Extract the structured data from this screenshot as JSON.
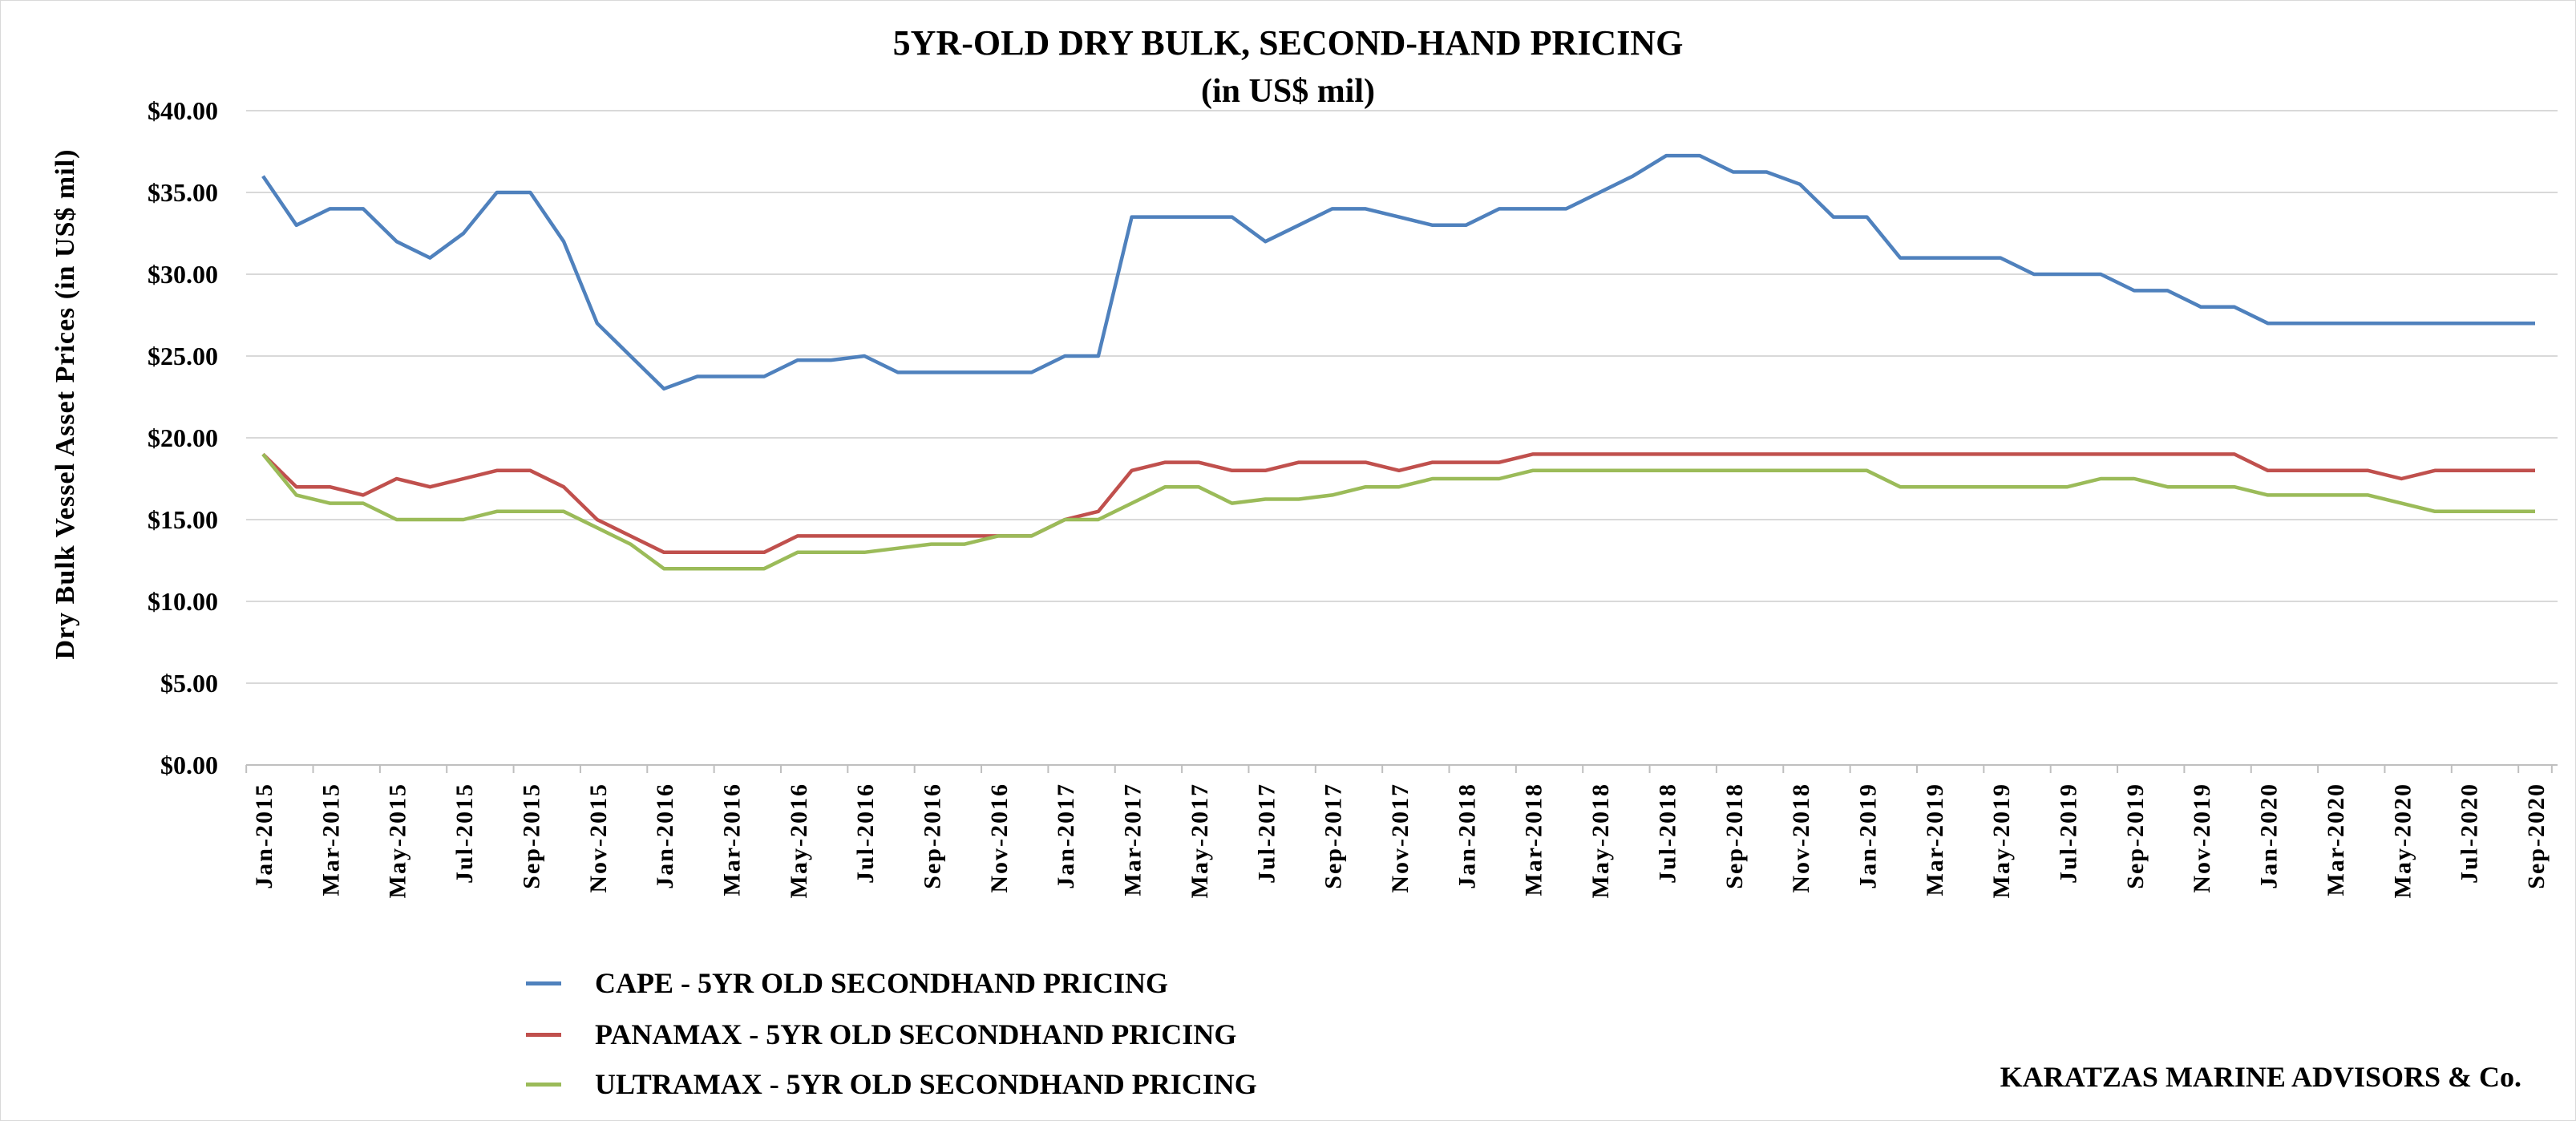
{
  "chart_data": {
    "type": "line",
    "title": "5YR-OLD DRY BULK, SECOND-HAND PRICING",
    "subtitle": "(in US$ mil)",
    "xlabel": "",
    "ylabel": "Dry Bulk Vessel Asset Prices (in US$ mil)",
    "ylim": [
      0,
      40
    ],
    "yticks": [
      "$0.00",
      "$5.00",
      "$10.00",
      "$15.00",
      "$20.00",
      "$25.00",
      "$30.00",
      "$35.00",
      "$40.00"
    ],
    "grid": true,
    "legend_position": "bottom-left",
    "x": [
      "Jan-2015",
      "Feb-2015",
      "Mar-2015",
      "Apr-2015",
      "May-2015",
      "Jun-2015",
      "Jul-2015",
      "Aug-2015",
      "Sep-2015",
      "Oct-2015",
      "Nov-2015",
      "Dec-2015",
      "Jan-2016",
      "Feb-2016",
      "Mar-2016",
      "Apr-2016",
      "May-2016",
      "Jun-2016",
      "Jul-2016",
      "Aug-2016",
      "Sep-2016",
      "Oct-2016",
      "Nov-2016",
      "Dec-2016",
      "Jan-2017",
      "Feb-2017",
      "Mar-2017",
      "Apr-2017",
      "May-2017",
      "Jun-2017",
      "Jul-2017",
      "Aug-2017",
      "Sep-2017",
      "Oct-2017",
      "Nov-2017",
      "Dec-2017",
      "Jan-2018",
      "Feb-2018",
      "Mar-2018",
      "Apr-2018",
      "May-2018",
      "Jun-2018",
      "Jul-2018",
      "Aug-2018",
      "Sep-2018",
      "Oct-2018",
      "Nov-2018",
      "Dec-2018",
      "Jan-2019",
      "Feb-2019",
      "Mar-2019",
      "Apr-2019",
      "May-2019",
      "Jun-2019",
      "Jul-2019",
      "Aug-2019",
      "Sep-2019",
      "Oct-2019",
      "Nov-2019",
      "Dec-2019",
      "Jan-2020",
      "Feb-2020",
      "Mar-2020",
      "Apr-2020",
      "May-2020",
      "Jun-2020",
      "Jul-2020",
      "Aug-2020",
      "Sep-2020"
    ],
    "xtick_labels": [
      "Jan-2015",
      "Mar-2015",
      "May-2015",
      "Jul-2015",
      "Sep-2015",
      "Nov-2015",
      "Jan-2016",
      "Mar-2016",
      "May-2016",
      "Jul-2016",
      "Sep-2016",
      "Nov-2016",
      "Jan-2017",
      "Mar-2017",
      "May-2017",
      "Jul-2017",
      "Sep-2017",
      "Nov-2017",
      "Jan-2018",
      "Mar-2018",
      "May-2018",
      "Jul-2018",
      "Sep-2018",
      "Nov-2018",
      "Jan-2019",
      "Mar-2019",
      "May-2019",
      "Jul-2019",
      "Sep-2019",
      "Nov-2019",
      "Jan-2020",
      "Mar-2020",
      "May-2020",
      "Jul-2020",
      "Sep-2020"
    ],
    "series": [
      {
        "name": "CAPE - 5YR OLD SECONDHAND PRICING",
        "color": "#4f81bd",
        "values": [
          36,
          33,
          34,
          34,
          32,
          31,
          32.5,
          35,
          35,
          32,
          27,
          25,
          23,
          23.75,
          23.75,
          23.75,
          24.75,
          24.75,
          25,
          24,
          24,
          24,
          24,
          24,
          25,
          25,
          33.5,
          33.5,
          33.5,
          33.5,
          32,
          33,
          34,
          34,
          33.5,
          33,
          33,
          34,
          34,
          34,
          35,
          36,
          37.25,
          37.25,
          36.25,
          36.25,
          35.5,
          33.5,
          33.5,
          31,
          31,
          31,
          31,
          30,
          30,
          30,
          29,
          29,
          28,
          28,
          27,
          27,
          27,
          27,
          27,
          27,
          27,
          27,
          27
        ]
      },
      {
        "name": "PANAMAX - 5YR OLD SECONDHAND PRICING",
        "color": "#c0504d",
        "values": [
          19,
          17,
          17,
          16.5,
          17.5,
          17,
          17.5,
          18,
          18,
          17,
          15,
          14,
          13,
          13,
          13,
          13,
          14,
          14,
          14,
          14,
          14,
          14,
          14,
          14,
          15,
          15.5,
          18,
          18.5,
          18.5,
          18,
          18,
          18.5,
          18.5,
          18.5,
          18,
          18.5,
          18.5,
          18.5,
          19,
          19,
          19,
          19,
          19,
          19,
          19,
          19,
          19,
          19,
          19,
          19,
          19,
          19,
          19,
          19,
          19,
          19,
          19,
          19,
          19,
          19,
          18,
          18,
          18,
          18,
          17.5,
          18,
          18,
          18,
          18
        ]
      },
      {
        "name": "ULTRAMAX - 5YR OLD SECONDHAND PRICING",
        "color": "#9bbb59",
        "values": [
          19,
          16.5,
          16,
          16,
          15,
          15,
          15,
          15.5,
          15.5,
          15.5,
          14.5,
          13.5,
          12,
          12,
          12,
          12,
          13,
          13,
          13,
          13.25,
          13.5,
          13.5,
          14,
          14,
          15,
          15,
          16,
          17,
          17,
          16,
          16.25,
          16.25,
          16.5,
          17,
          17,
          17.5,
          17.5,
          17.5,
          18,
          18,
          18,
          18,
          18,
          18,
          18,
          18,
          18,
          18,
          18,
          17,
          17,
          17,
          17,
          17,
          17,
          17.5,
          17.5,
          17,
          17,
          17,
          16.5,
          16.5,
          16.5,
          16.5,
          16,
          15.5,
          15.5,
          15.5,
          15.5
        ]
      }
    ]
  },
  "credit": "KARATZAS MARINE ADVISORS & Co."
}
